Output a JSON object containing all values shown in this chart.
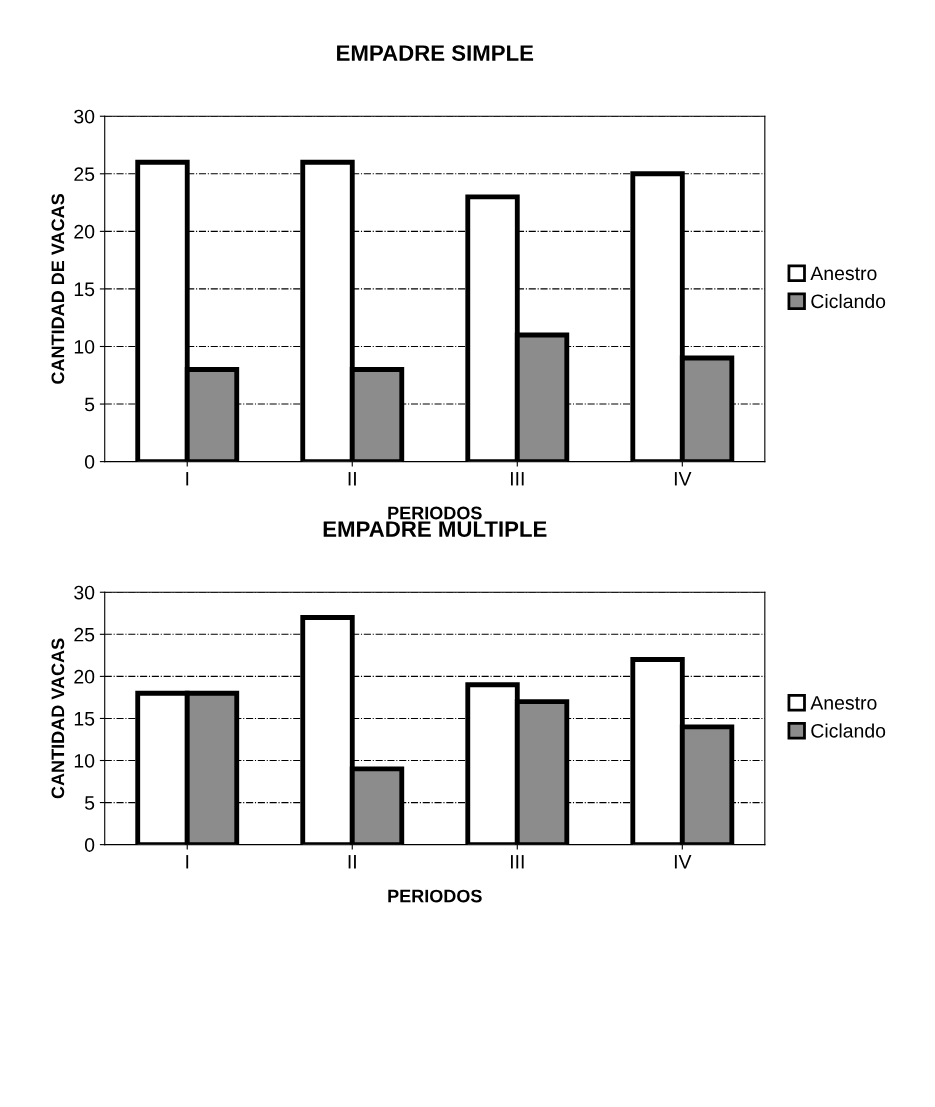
{
  "chart_data": [
    {
      "type": "bar",
      "title": "EMPADRE SIMPLE",
      "xlabel": "PERIODOS",
      "ylabel": "CANTIDAD DE VACAS",
      "categories": [
        "I",
        "II",
        "III",
        "IV"
      ],
      "series": [
        {
          "name": "Anestro",
          "color": "#ffffff",
          "values": [
            26,
            26,
            23,
            25
          ]
        },
        {
          "name": "Ciclando",
          "color": "#8c8c8c",
          "values": [
            8,
            8,
            11,
            9
          ]
        }
      ],
      "ylim": [
        0,
        30
      ],
      "yticks": [
        0,
        5,
        10,
        15,
        20,
        25,
        30
      ],
      "grid": "y",
      "legend": "right"
    },
    {
      "type": "bar",
      "title": "EMPADRE MULTIPLE",
      "xlabel": "PERIODOS",
      "ylabel": "CANTIDAD VACAS",
      "categories": [
        "I",
        "II",
        "III",
        "IV"
      ],
      "series": [
        {
          "name": "Anestro",
          "color": "#ffffff",
          "values": [
            18,
            27,
            19,
            22
          ]
        },
        {
          "name": "Ciclando",
          "color": "#8c8c8c",
          "values": [
            18,
            9,
            17,
            14
          ]
        }
      ],
      "ylim": [
        0,
        30
      ],
      "yticks": [
        0,
        5,
        10,
        15,
        20,
        25,
        30
      ],
      "grid": "y",
      "legend": "right"
    }
  ]
}
